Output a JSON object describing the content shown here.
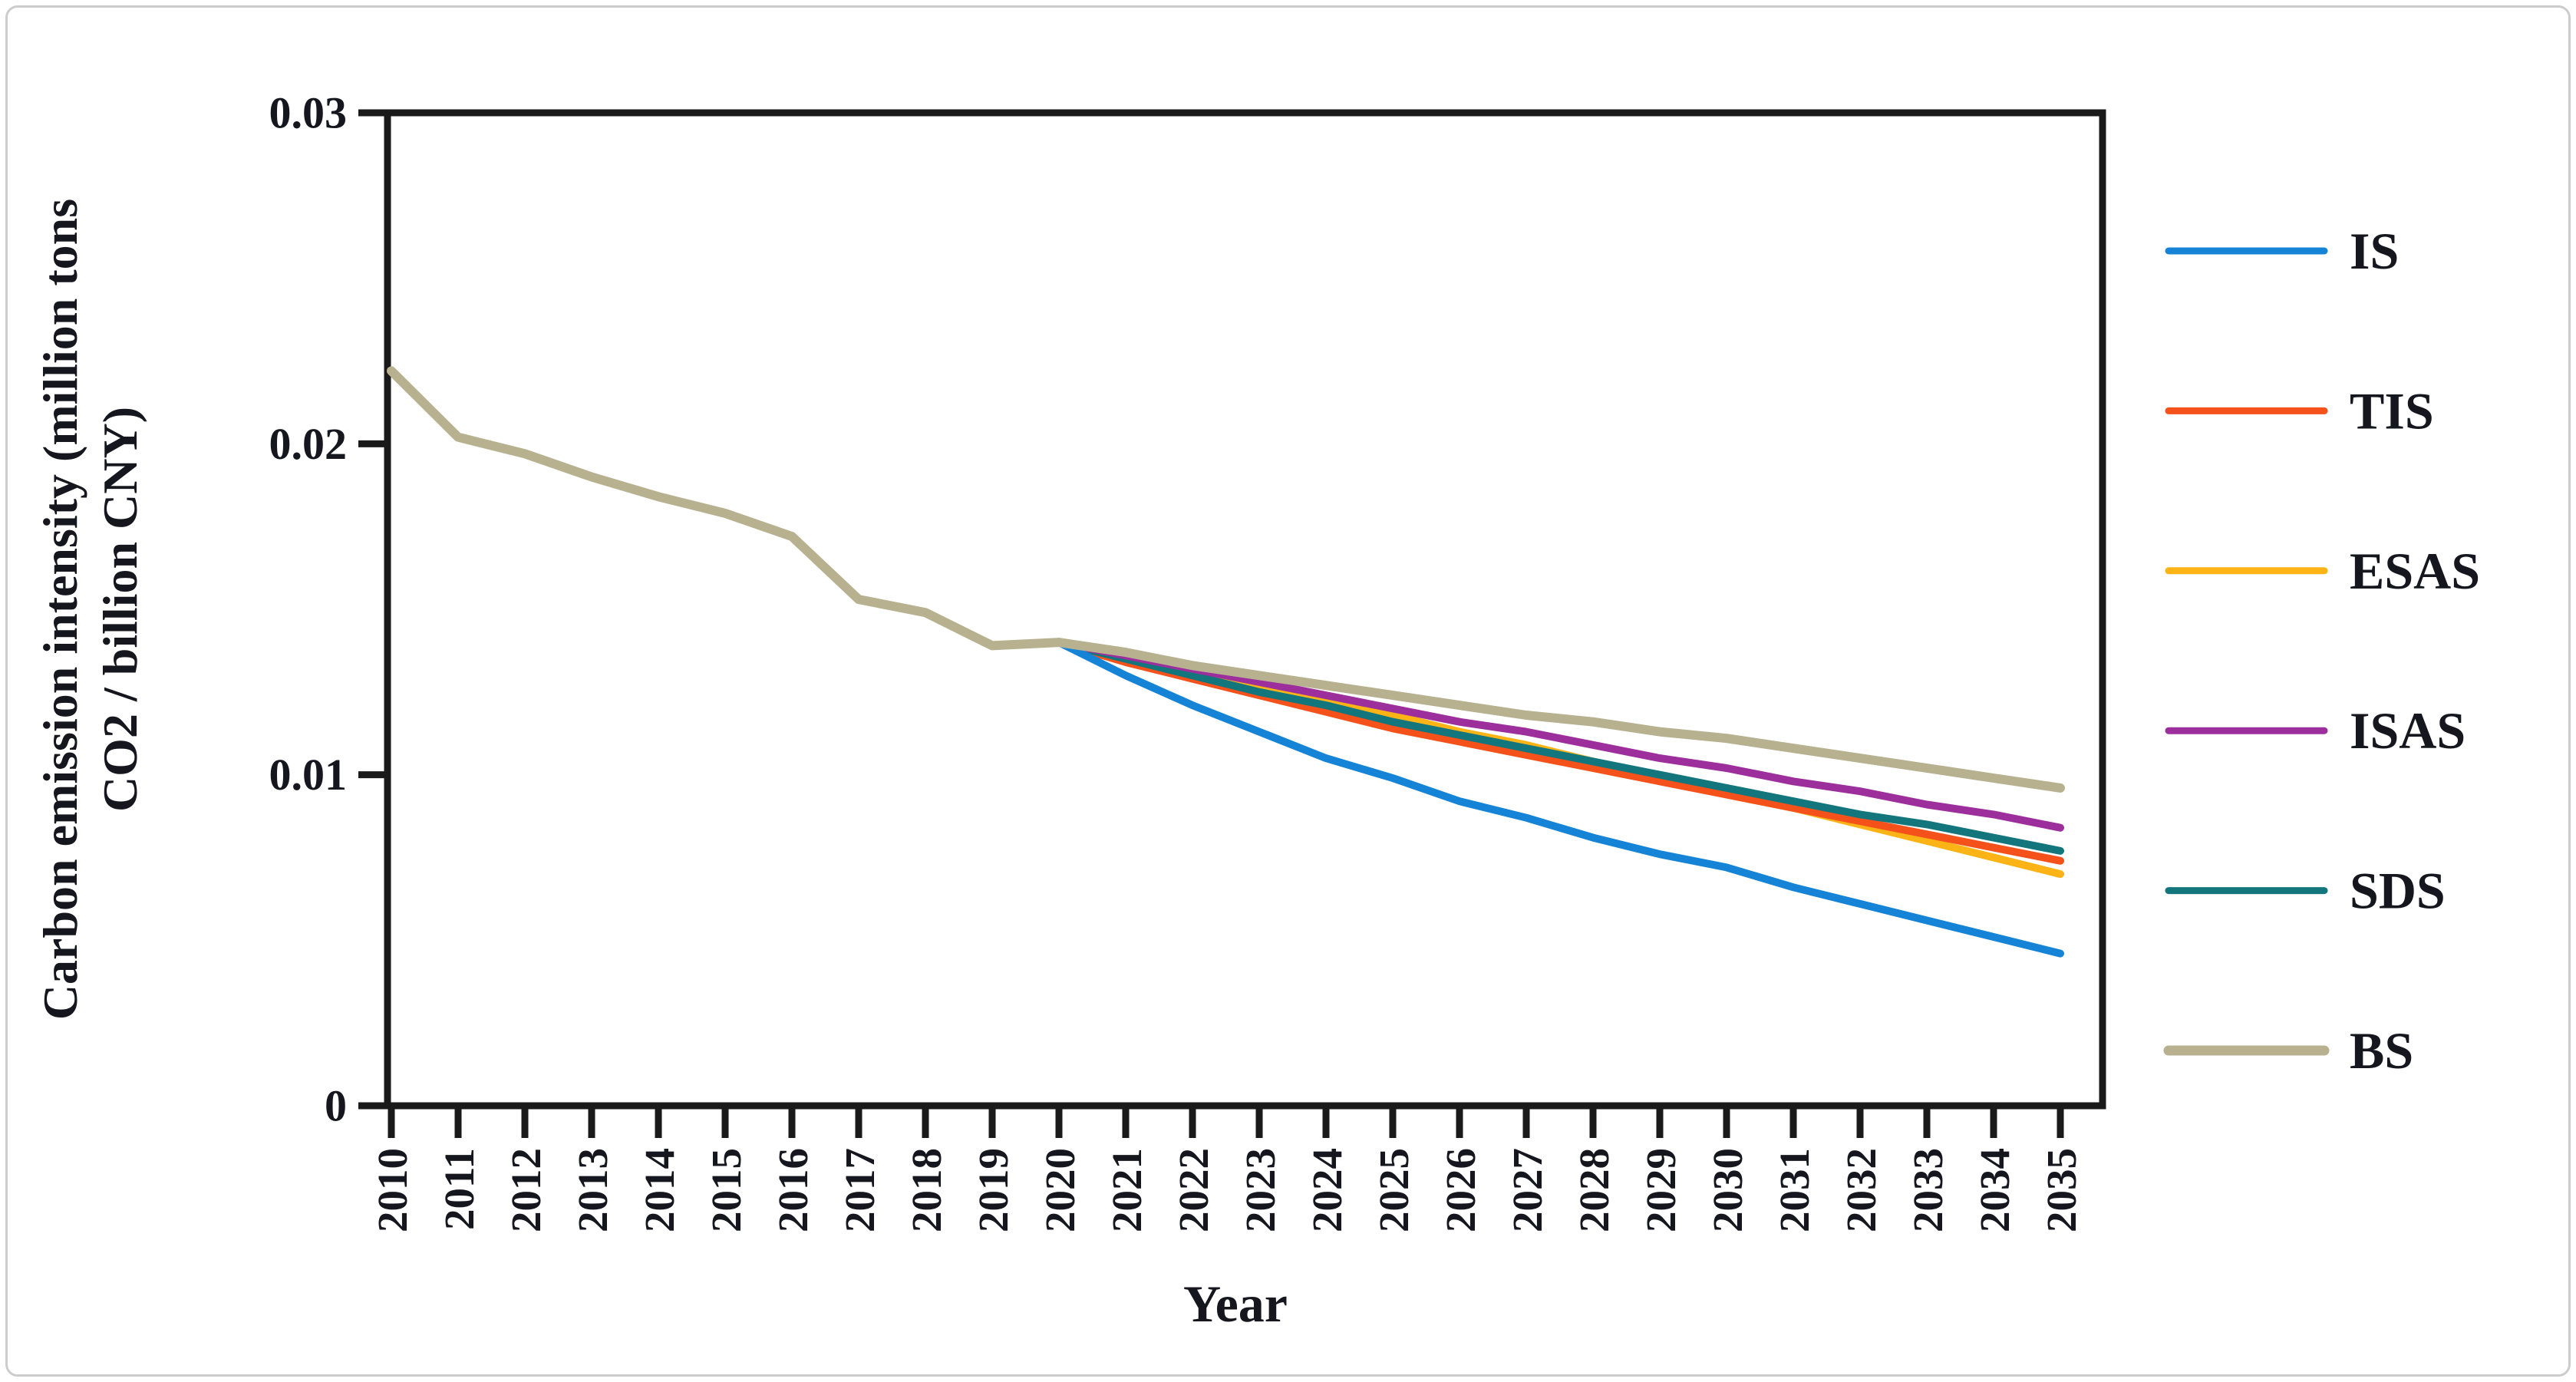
{
  "figure": {
    "kind": "line-chart-figure",
    "background": "#ffffff",
    "frame_color": "#cccccc",
    "axis_color": "#1a1a1a",
    "text_color": "#16161f"
  },
  "chart_data": {
    "type": "line",
    "title": "",
    "xlabel": "Year",
    "ylabel": "Carbon emission intensity (million tons CO2 / billion CNY)",
    "ylabel_line1": "Carbon emission intensity (million tons",
    "ylabel_line2": "CO2 / billion CNY)",
    "x_tick_labels": [
      "2010",
      "2011",
      "2012",
      "2013",
      "2014",
      "2015",
      "2016",
      "2017",
      "2018",
      "2019",
      "2020",
      "2021",
      "2022",
      "2023",
      "2024",
      "2025",
      "2026",
      "2027",
      "2028",
      "2029",
      "2030",
      "2031",
      "2032",
      "2033",
      "2034",
      "2035"
    ],
    "y_tick_labels": [
      "0",
      "0.01",
      "0.02",
      "0.03"
    ],
    "y_ticks": [
      0,
      0.01,
      0.02,
      0.03
    ],
    "ylim": [
      0,
      0.03
    ],
    "xlim": [
      2010,
      2035
    ],
    "grid": false,
    "legend_position": "right",
    "history": {
      "name": "shared-history-2010-2020",
      "color": "#b8b190",
      "years": [
        2010,
        2011,
        2012,
        2013,
        2014,
        2015,
        2016,
        2017,
        2018,
        2019,
        2020
      ],
      "values": [
        0.0222,
        0.0202,
        0.0197,
        0.019,
        0.0184,
        0.0179,
        0.0172,
        0.0153,
        0.0149,
        0.0139,
        0.014
      ]
    },
    "series": [
      {
        "name": "IS",
        "color": "#1583d6",
        "years": [
          2020,
          2021,
          2022,
          2023,
          2024,
          2025,
          2026,
          2027,
          2028,
          2029,
          2030,
          2031,
          2032,
          2033,
          2034,
          2035
        ],
        "values": [
          0.014,
          0.013,
          0.0121,
          0.0113,
          0.0105,
          0.0099,
          0.0092,
          0.0087,
          0.0081,
          0.0076,
          0.0072,
          0.0066,
          0.0061,
          0.0056,
          0.0051,
          0.0046
        ]
      },
      {
        "name": "TIS",
        "color": "#f4521a",
        "years": [
          2020,
          2021,
          2022,
          2023,
          2024,
          2025,
          2026,
          2027,
          2028,
          2029,
          2030,
          2031,
          2032,
          2033,
          2034,
          2035
        ],
        "values": [
          0.014,
          0.0134,
          0.0129,
          0.0124,
          0.0119,
          0.0114,
          0.011,
          0.0106,
          0.0102,
          0.0098,
          0.0094,
          0.009,
          0.0086,
          0.0082,
          0.0078,
          0.0074
        ]
      },
      {
        "name": "ESAS",
        "color": "#fcb315",
        "years": [
          2020,
          2021,
          2022,
          2023,
          2024,
          2025,
          2026,
          2027,
          2028,
          2029,
          2030,
          2031,
          2032,
          2033,
          2034,
          2035
        ],
        "values": [
          0.014,
          0.0136,
          0.0131,
          0.0127,
          0.0122,
          0.0118,
          0.0113,
          0.0109,
          0.0104,
          0.0099,
          0.0094,
          0.009,
          0.0085,
          0.008,
          0.0075,
          0.007
        ]
      },
      {
        "name": "ISAS",
        "color": "#9d2f9d",
        "years": [
          2020,
          2021,
          2022,
          2023,
          2024,
          2025,
          2026,
          2027,
          2028,
          2029,
          2030,
          2031,
          2032,
          2033,
          2034,
          2035
        ],
        "values": [
          0.014,
          0.0136,
          0.0132,
          0.0128,
          0.0124,
          0.012,
          0.0116,
          0.0113,
          0.0109,
          0.0105,
          0.0102,
          0.0098,
          0.0095,
          0.0091,
          0.0088,
          0.0084
        ]
      },
      {
        "name": "SDS",
        "color": "#12767c",
        "years": [
          2020,
          2021,
          2022,
          2023,
          2024,
          2025,
          2026,
          2027,
          2028,
          2029,
          2030,
          2031,
          2032,
          2033,
          2034,
          2035
        ],
        "values": [
          0.014,
          0.0135,
          0.013,
          0.0125,
          0.0121,
          0.0116,
          0.0112,
          0.0108,
          0.0104,
          0.01,
          0.0096,
          0.0092,
          0.0088,
          0.0085,
          0.0081,
          0.0077
        ]
      },
      {
        "name": "BS",
        "color": "#b8b190",
        "years": [
          2020,
          2021,
          2022,
          2023,
          2024,
          2025,
          2026,
          2027,
          2028,
          2029,
          2030,
          2031,
          2032,
          2033,
          2034,
          2035
        ],
        "values": [
          0.014,
          0.0137,
          0.0133,
          0.013,
          0.0127,
          0.0124,
          0.0121,
          0.0118,
          0.0116,
          0.0113,
          0.0111,
          0.0108,
          0.0105,
          0.0102,
          0.0099,
          0.0096
        ]
      }
    ],
    "legend_entries": [
      "IS",
      "TIS",
      "ESAS",
      "ISAS",
      "SDS",
      "BS"
    ]
  }
}
